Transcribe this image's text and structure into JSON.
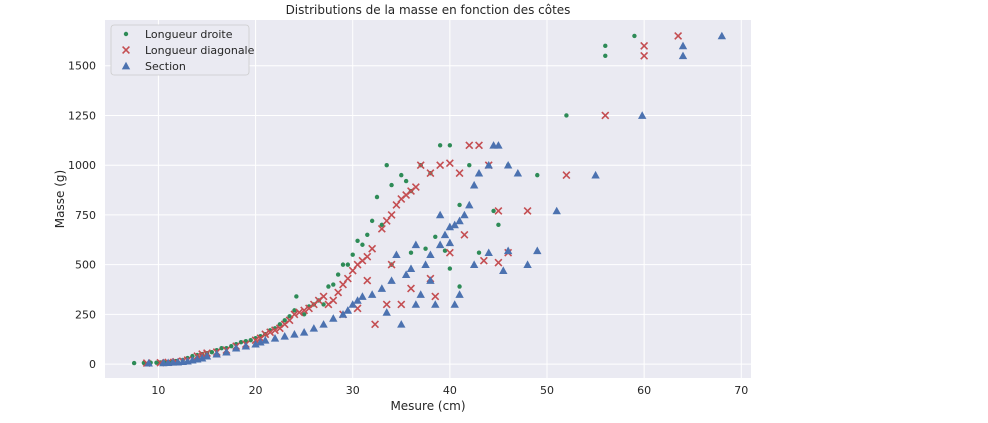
{
  "chart_data": {
    "type": "scatter",
    "title": "Distributions de la masse en fonction des côtes",
    "xlabel": "Mesure (cm)",
    "ylabel": "Masse (g)",
    "xlim": [
      4.5,
      71
    ],
    "ylim": [
      -70,
      1730
    ],
    "xticks": [
      10,
      20,
      30,
      40,
      50,
      60,
      70
    ],
    "yticks": [
      0,
      250,
      500,
      750,
      1000,
      1250,
      1500
    ],
    "grid": true,
    "legend_position": "top-left",
    "background": "#eaeaf2",
    "series": [
      {
        "name": "Longueur droite",
        "marker": "dot",
        "color": "#2e8b57",
        "points": [
          [
            7.5,
            5
          ],
          [
            8.5,
            6
          ],
          [
            9.2,
            7
          ],
          [
            9.8,
            7
          ],
          [
            10.2,
            8
          ],
          [
            10.6,
            9
          ],
          [
            11.0,
            10
          ],
          [
            11.3,
            12
          ],
          [
            11.8,
            15
          ],
          [
            12.0,
            10
          ],
          [
            12.5,
            20
          ],
          [
            13.0,
            30
          ],
          [
            13.5,
            40
          ],
          [
            14.0,
            45
          ],
          [
            14.5,
            50
          ],
          [
            15.0,
            55
          ],
          [
            15.5,
            60
          ],
          [
            16.0,
            70
          ],
          [
            16.5,
            80
          ],
          [
            17.0,
            80
          ],
          [
            17.5,
            90
          ],
          [
            18.0,
            100
          ],
          [
            18.5,
            110
          ],
          [
            19.0,
            115
          ],
          [
            19.5,
            120
          ],
          [
            20.0,
            130
          ],
          [
            20.5,
            140
          ],
          [
            21.0,
            150
          ],
          [
            21.5,
            170
          ],
          [
            22.0,
            180
          ],
          [
            22.5,
            200
          ],
          [
            23.0,
            220
          ],
          [
            23.5,
            240
          ],
          [
            24.0,
            270
          ],
          [
            24.2,
            340
          ],
          [
            25.0,
            250
          ],
          [
            25.5,
            290
          ],
          [
            26.0,
            300
          ],
          [
            26.5,
            320
          ],
          [
            27.0,
            300
          ],
          [
            27.5,
            390
          ],
          [
            28.0,
            400
          ],
          [
            28.5,
            450
          ],
          [
            29.0,
            500
          ],
          [
            29.5,
            500
          ],
          [
            30.0,
            550
          ],
          [
            30.5,
            620
          ],
          [
            31.0,
            600
          ],
          [
            31.5,
            650
          ],
          [
            32.0,
            720
          ],
          [
            32.5,
            840
          ],
          [
            33.0,
            700
          ],
          [
            33.5,
            1000
          ],
          [
            34.0,
            900
          ],
          [
            35.0,
            950
          ],
          [
            35.5,
            920
          ],
          [
            36.0,
            870
          ],
          [
            37.0,
            1000
          ],
          [
            38.0,
            960
          ],
          [
            39.0,
            1100
          ],
          [
            40.0,
            1100
          ],
          [
            41.0,
            800
          ],
          [
            42.0,
            1000
          ],
          [
            44.0,
            1000
          ],
          [
            44.5,
            770
          ],
          [
            45.0,
            700
          ],
          [
            46.0,
            1000
          ],
          [
            49.0,
            950
          ],
          [
            52.0,
            1250
          ],
          [
            56.0,
            1550
          ],
          [
            56.0,
            1600
          ],
          [
            59.0,
            1650
          ],
          [
            36.0,
            560
          ],
          [
            37.5,
            580
          ],
          [
            38.5,
            640
          ],
          [
            39.5,
            570
          ],
          [
            40.0,
            480
          ],
          [
            41.0,
            390
          ],
          [
            43.0,
            560
          ],
          [
            34.0,
            500
          ]
        ]
      },
      {
        "name": "Longueur diagonale",
        "marker": "x",
        "color": "#c44e52",
        "points": [
          [
            8.8,
            5
          ],
          [
            10.2,
            7
          ],
          [
            11.0,
            9
          ],
          [
            11.8,
            12
          ],
          [
            12.5,
            15
          ],
          [
            13.0,
            20
          ],
          [
            14.0,
            40
          ],
          [
            14.5,
            50
          ],
          [
            15.0,
            55
          ],
          [
            16.0,
            60
          ],
          [
            17.0,
            70
          ],
          [
            18.0,
            90
          ],
          [
            19.0,
            100
          ],
          [
            20.0,
            120
          ],
          [
            20.5,
            130
          ],
          [
            21.0,
            150
          ],
          [
            21.5,
            160
          ],
          [
            22.0,
            170
          ],
          [
            22.5,
            180
          ],
          [
            23.0,
            200
          ],
          [
            23.5,
            220
          ],
          [
            24.0,
            250
          ],
          [
            24.5,
            260
          ],
          [
            25.0,
            270
          ],
          [
            25.5,
            280
          ],
          [
            26.0,
            300
          ],
          [
            26.5,
            320
          ],
          [
            27.0,
            340
          ],
          [
            27.5,
            300
          ],
          [
            28.0,
            320
          ],
          [
            28.5,
            360
          ],
          [
            29.0,
            400
          ],
          [
            29.5,
            430
          ],
          [
            30.0,
            470
          ],
          [
            30.5,
            500
          ],
          [
            31.0,
            520
          ],
          [
            31.5,
            540
          ],
          [
            32.0,
            580
          ],
          [
            32.3,
            200
          ],
          [
            33.0,
            680
          ],
          [
            33.5,
            720
          ],
          [
            34.0,
            750
          ],
          [
            34.5,
            800
          ],
          [
            35.0,
            830
          ],
          [
            35.5,
            850
          ],
          [
            36.0,
            870
          ],
          [
            36.5,
            890
          ],
          [
            37.0,
            1000
          ],
          [
            38.0,
            960
          ],
          [
            39.0,
            1000
          ],
          [
            40.0,
            1010
          ],
          [
            41.0,
            960
          ],
          [
            42.0,
            1100
          ],
          [
            43.0,
            1100
          ],
          [
            44.0,
            1000
          ],
          [
            45.0,
            770
          ],
          [
            46.0,
            560
          ],
          [
            48.0,
            770
          ],
          [
            52.0,
            950
          ],
          [
            56.0,
            1250
          ],
          [
            60.0,
            1550
          ],
          [
            60.0,
            1600
          ],
          [
            63.5,
            1650
          ],
          [
            34.0,
            500
          ],
          [
            35.0,
            300
          ],
          [
            36.0,
            380
          ],
          [
            38.0,
            430
          ],
          [
            40.0,
            560
          ],
          [
            41.5,
            650
          ],
          [
            43.5,
            520
          ],
          [
            33.5,
            300
          ],
          [
            31.5,
            420
          ],
          [
            30.5,
            280
          ],
          [
            29.0,
            250
          ],
          [
            38.5,
            340
          ],
          [
            45.0,
            510
          ]
        ]
      },
      {
        "name": "Section",
        "marker": "triangle",
        "color": "#4c72b0",
        "points": [
          [
            9.0,
            5
          ],
          [
            10.5,
            6
          ],
          [
            11.0,
            7
          ],
          [
            11.5,
            9
          ],
          [
            12.0,
            10
          ],
          [
            12.5,
            12
          ],
          [
            13.0,
            15
          ],
          [
            13.5,
            20
          ],
          [
            14.0,
            25
          ],
          [
            14.5,
            30
          ],
          [
            15.0,
            40
          ],
          [
            16.0,
            50
          ],
          [
            17.0,
            60
          ],
          [
            18.0,
            80
          ],
          [
            19.0,
            90
          ],
          [
            20.0,
            100
          ],
          [
            20.5,
            110
          ],
          [
            21.0,
            120
          ],
          [
            22.0,
            130
          ],
          [
            23.0,
            140
          ],
          [
            24.0,
            150
          ],
          [
            25.0,
            160
          ],
          [
            26.0,
            180
          ],
          [
            27.0,
            200
          ],
          [
            28.0,
            230
          ],
          [
            29.0,
            250
          ],
          [
            29.5,
            270
          ],
          [
            30.0,
            300
          ],
          [
            30.5,
            320
          ],
          [
            31.0,
            340
          ],
          [
            32.0,
            350
          ],
          [
            33.0,
            380
          ],
          [
            34.0,
            420
          ],
          [
            35.0,
            200
          ],
          [
            35.5,
            450
          ],
          [
            36.0,
            480
          ],
          [
            36.5,
            300
          ],
          [
            37.0,
            350
          ],
          [
            37.5,
            500
          ],
          [
            38.0,
            550
          ],
          [
            38.5,
            300
          ],
          [
            39.0,
            600
          ],
          [
            39.5,
            650
          ],
          [
            40.0,
            690
          ],
          [
            40.5,
            700
          ],
          [
            41.0,
            720
          ],
          [
            41.5,
            750
          ],
          [
            42.0,
            800
          ],
          [
            42.5,
            900
          ],
          [
            43.0,
            960
          ],
          [
            44.0,
            1000
          ],
          [
            44.5,
            1100
          ],
          [
            45.0,
            1100
          ],
          [
            46.0,
            1000
          ],
          [
            47.0,
            960
          ],
          [
            48.0,
            500
          ],
          [
            49.0,
            570
          ],
          [
            51.0,
            770
          ],
          [
            55.0,
            950
          ],
          [
            59.8,
            1250
          ],
          [
            64.0,
            1550
          ],
          [
            64.0,
            1600
          ],
          [
            68.0,
            1650
          ],
          [
            33.5,
            260
          ],
          [
            34.5,
            550
          ],
          [
            36.5,
            600
          ],
          [
            38.0,
            420
          ],
          [
            40.0,
            610
          ],
          [
            41.0,
            350
          ],
          [
            42.5,
            500
          ],
          [
            44.0,
            560
          ],
          [
            45.5,
            470
          ],
          [
            46.0,
            570
          ],
          [
            40.5,
            300
          ],
          [
            39.0,
            750
          ]
        ]
      }
    ]
  }
}
